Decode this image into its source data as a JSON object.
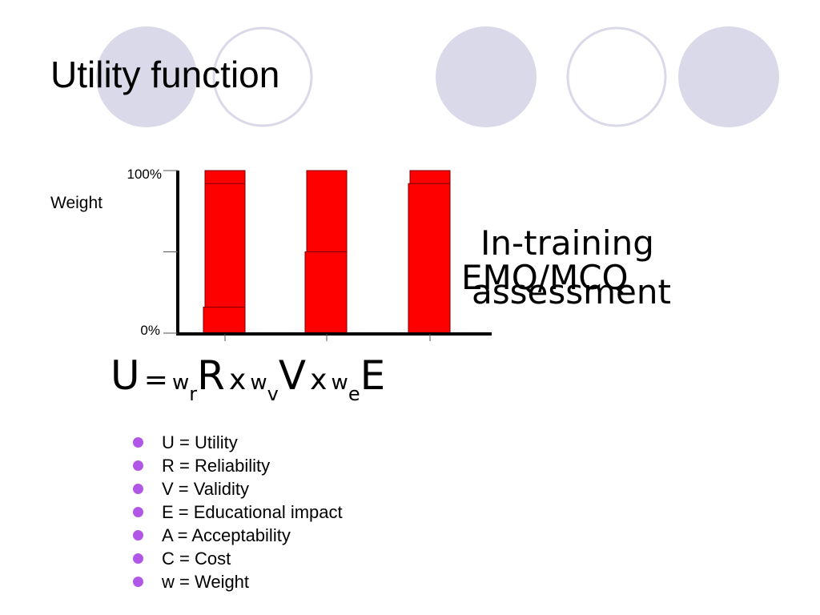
{
  "slide": {
    "title": "Utility function"
  },
  "colors": {
    "deco_filled": "#d9d9ea",
    "deco_outline": "#d9d9ea",
    "bar_fill": "#ff0000",
    "bullet": "#b057e8"
  },
  "chart_data": {
    "type": "bar",
    "ylabel": "Weight",
    "yticks": [
      "0%",
      "100%"
    ],
    "ylim": [
      0,
      100
    ],
    "series": [
      {
        "tops": [
          100,
          100,
          100
        ],
        "values": [
          92,
          50,
          92
        ]
      },
      {
        "values": [
          16,
          50,
          92
        ]
      }
    ],
    "category_count": 3,
    "annotation": "In-training\nassessment",
    "annotation_overlap": "EMQ/MCQ"
  },
  "formula": {
    "u": "U",
    "eq": "=",
    "w": "w",
    "r_sub": "r",
    "r": "R",
    "x": "x",
    "v_sub": "v",
    "v": "V",
    "e_sub": "e",
    "e": "E"
  },
  "legend": [
    "U = Utility",
    "R = Reliability",
    "V = Validity",
    "E = Educational impact",
    "A = Acceptability",
    "C = Cost",
    "w = Weight"
  ]
}
